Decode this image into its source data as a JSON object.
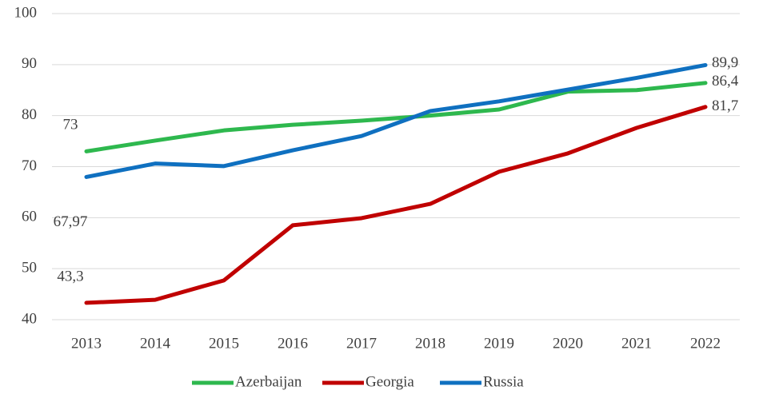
{
  "chart_data": {
    "type": "line",
    "categories": [
      "2013",
      "2014",
      "2015",
      "2016",
      "2017",
      "2018",
      "2019",
      "2020",
      "2021",
      "2022"
    ],
    "series": [
      {
        "name": "Azerbaijan",
        "color": "#2eb84e",
        "values": [
          73,
          75.1,
          77.1,
          78.2,
          79,
          80,
          81.2,
          84.7,
          85,
          86.4
        ],
        "value_labels": [
          "73",
          null,
          null,
          null,
          null,
          null,
          null,
          null,
          null,
          "86,4"
        ]
      },
      {
        "name": "Georgia",
        "color": "#c00000",
        "values": [
          43.3,
          43.9,
          47.7,
          58.5,
          59.9,
          62.7,
          69,
          72.6,
          77.6,
          81.7
        ],
        "value_labels": [
          "43,3",
          null,
          null,
          null,
          null,
          null,
          null,
          null,
          null,
          "81,7"
        ]
      },
      {
        "name": "Russia",
        "color": "#0f70c0",
        "values": [
          67.97,
          70.6,
          70.1,
          73.2,
          76,
          80.9,
          82.8,
          85.1,
          87.4,
          89.9
        ],
        "value_labels": [
          "67,97",
          null,
          null,
          null,
          null,
          null,
          null,
          null,
          null,
          "89,9"
        ]
      }
    ],
    "ylim": [
      40,
      100
    ],
    "yticks": [
      40,
      50,
      60,
      70,
      80,
      90,
      100
    ],
    "grid": true,
    "legend": "bottom"
  }
}
